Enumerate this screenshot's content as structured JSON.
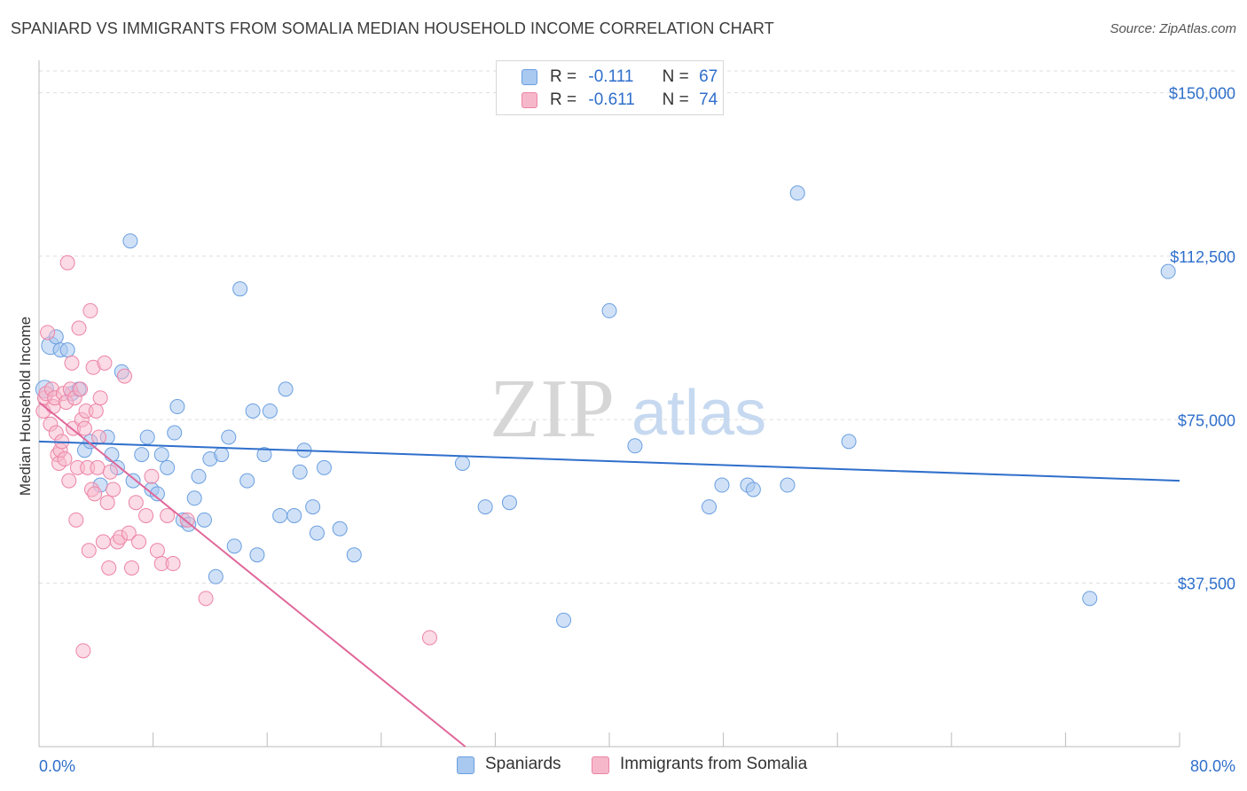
{
  "title": "SPANIARD VS IMMIGRANTS FROM SOMALIA MEDIAN HOUSEHOLD INCOME CORRELATION CHART",
  "source": "Source: ZipAtlas.com",
  "watermark": {
    "zip": "ZIP",
    "atlas": "atlas"
  },
  "legend": {
    "r_label": "R =",
    "n_label": "N =",
    "series": [
      {
        "r": "-0.111",
        "n": "67"
      },
      {
        "r": "-0.611",
        "n": "74"
      }
    ]
  },
  "colors": {
    "spaniards_fill": "#a9c9f0",
    "spaniards_stroke": "#6a9fe0",
    "spaniards_line": "#2f6fcb",
    "somalia_fill": "#f7b7cb",
    "somalia_stroke": "#ec84a6",
    "somalia_line": "#e0679a",
    "axis_label": "#2f6fcb",
    "grid": "#dddddd"
  },
  "chart_data": {
    "type": "scatter",
    "xlabel": "",
    "ylabel": "Median Household Income",
    "x_tick_labels": [
      "0.0%",
      "80.0%"
    ],
    "y_tick_labels": [
      "$37,500",
      "$75,000",
      "$112,500",
      "$150,000"
    ],
    "y_ticks": [
      37500,
      75000,
      112500,
      150000
    ],
    "xlim": [
      0,
      80
    ],
    "ylim": [
      0,
      155000
    ],
    "grid": true,
    "legend_placement": "bottom-center",
    "series": [
      {
        "name": "Spaniards",
        "trend": {
          "x": [
            0,
            80
          ],
          "y": [
            70000,
            61000
          ]
        },
        "points": [
          [
            0.4,
            82000
          ],
          [
            0.8,
            92000
          ],
          [
            1.2,
            94000
          ],
          [
            1.5,
            91000
          ],
          [
            2.0,
            91000
          ],
          [
            2.3,
            81000
          ],
          [
            2.8,
            82000
          ],
          [
            3.2,
            68000
          ],
          [
            3.6,
            70000
          ],
          [
            4.3,
            60000
          ],
          [
            4.8,
            71000
          ],
          [
            5.1,
            67000
          ],
          [
            5.5,
            64000
          ],
          [
            5.8,
            86000
          ],
          [
            6.4,
            116000
          ],
          [
            6.6,
            61000
          ],
          [
            7.2,
            67000
          ],
          [
            7.6,
            71000
          ],
          [
            7.9,
            59000
          ],
          [
            8.3,
            58000
          ],
          [
            8.6,
            67000
          ],
          [
            9.0,
            64000
          ],
          [
            9.5,
            72000
          ],
          [
            9.7,
            78000
          ],
          [
            10.1,
            52000
          ],
          [
            10.5,
            51000
          ],
          [
            10.9,
            57000
          ],
          [
            11.2,
            62000
          ],
          [
            11.6,
            52000
          ],
          [
            12.0,
            66000
          ],
          [
            12.4,
            39000
          ],
          [
            12.8,
            67000
          ],
          [
            13.3,
            71000
          ],
          [
            13.7,
            46000
          ],
          [
            14.1,
            105000
          ],
          [
            14.6,
            61000
          ],
          [
            15.0,
            77000
          ],
          [
            15.3,
            44000
          ],
          [
            15.8,
            67000
          ],
          [
            16.2,
            77000
          ],
          [
            16.9,
            53000
          ],
          [
            17.3,
            82000
          ],
          [
            17.9,
            53000
          ],
          [
            18.3,
            63000
          ],
          [
            18.6,
            68000
          ],
          [
            19.2,
            55000
          ],
          [
            19.5,
            49000
          ],
          [
            20.0,
            64000
          ],
          [
            21.1,
            50000
          ],
          [
            22.1,
            44000
          ],
          [
            29.7,
            65000
          ],
          [
            31.3,
            55000
          ],
          [
            33.0,
            56000
          ],
          [
            36.8,
            29000
          ],
          [
            40.0,
            100000
          ],
          [
            41.8,
            69000
          ],
          [
            47.0,
            55000
          ],
          [
            47.9,
            60000
          ],
          [
            49.7,
            60000
          ],
          [
            50.1,
            59000
          ],
          [
            52.5,
            60000
          ],
          [
            53.2,
            127000
          ],
          [
            56.8,
            70000
          ],
          [
            73.7,
            34000
          ],
          [
            79.2,
            109000
          ]
        ]
      },
      {
        "name": "Immigrants from Somalia",
        "trend": {
          "x": [
            0,
            29.9
          ],
          "y": [
            79000,
            0
          ]
        },
        "points": [
          [
            0.3,
            77000
          ],
          [
            0.4,
            80000
          ],
          [
            0.5,
            81000
          ],
          [
            0.6,
            95000
          ],
          [
            0.8,
            74000
          ],
          [
            0.9,
            82000
          ],
          [
            1.0,
            78000
          ],
          [
            1.1,
            80000
          ],
          [
            1.2,
            72000
          ],
          [
            1.3,
            67000
          ],
          [
            1.4,
            65000
          ],
          [
            1.5,
            68000
          ],
          [
            1.6,
            70000
          ],
          [
            1.7,
            81000
          ],
          [
            1.8,
            66000
          ],
          [
            1.9,
            79000
          ],
          [
            2.0,
            111000
          ],
          [
            2.1,
            61000
          ],
          [
            2.2,
            82000
          ],
          [
            2.3,
            88000
          ],
          [
            2.4,
            73000
          ],
          [
            2.5,
            80000
          ],
          [
            2.6,
            52000
          ],
          [
            2.7,
            64000
          ],
          [
            2.8,
            96000
          ],
          [
            2.9,
            82000
          ],
          [
            3.0,
            75000
          ],
          [
            3.1,
            22000
          ],
          [
            3.2,
            73000
          ],
          [
            3.3,
            77000
          ],
          [
            3.4,
            64000
          ],
          [
            3.5,
            45000
          ],
          [
            3.6,
            100000
          ],
          [
            3.7,
            59000
          ],
          [
            3.8,
            87000
          ],
          [
            3.9,
            58000
          ],
          [
            4.0,
            77000
          ],
          [
            4.1,
            64000
          ],
          [
            4.2,
            71000
          ],
          [
            4.3,
            80000
          ],
          [
            4.5,
            47000
          ],
          [
            4.6,
            88000
          ],
          [
            4.8,
            56000
          ],
          [
            4.9,
            41000
          ],
          [
            5.0,
            63000
          ],
          [
            5.2,
            59000
          ],
          [
            5.5,
            47000
          ],
          [
            5.7,
            48000
          ],
          [
            6.0,
            85000
          ],
          [
            6.3,
            49000
          ],
          [
            6.5,
            41000
          ],
          [
            6.8,
            56000
          ],
          [
            7.0,
            47000
          ],
          [
            7.5,
            53000
          ],
          [
            7.9,
            62000
          ],
          [
            8.3,
            45000
          ],
          [
            8.6,
            42000
          ],
          [
            9.0,
            53000
          ],
          [
            9.4,
            42000
          ],
          [
            10.4,
            52000
          ],
          [
            11.7,
            34000
          ],
          [
            27.4,
            25000
          ]
        ]
      }
    ]
  }
}
